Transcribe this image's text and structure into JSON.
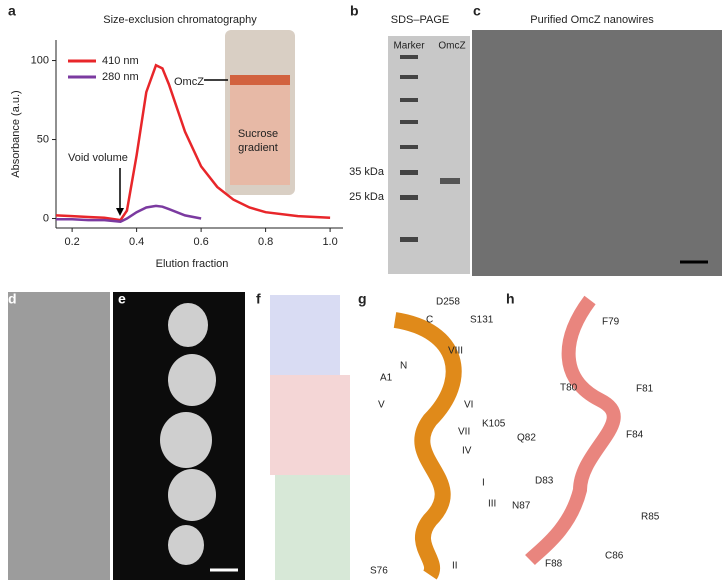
{
  "chart_data": {
    "type": "line",
    "panel": "a",
    "title": "Size-exclusion chromatography",
    "xlabel": "Elution fraction",
    "ylabel": "Absorbance (a.u.)",
    "x": [
      0.15,
      0.2,
      0.25,
      0.3,
      0.35,
      0.37,
      0.4,
      0.43,
      0.46,
      0.48,
      0.5,
      0.55,
      0.6,
      0.65,
      0.7,
      0.75,
      0.8,
      0.9,
      1.0
    ],
    "series": [
      {
        "name": "410 nm",
        "color": "#e8262a",
        "values": [
          2,
          1.5,
          1,
          0.5,
          -1,
          5,
          40,
          80,
          97,
          95,
          85,
          55,
          33,
          20,
          12,
          7,
          4,
          1.5,
          0.5
        ]
      },
      {
        "name": "280 nm",
        "color": "#7b3aa0",
        "values": [
          -0.5,
          -0.5,
          -1,
          -1,
          -2,
          0,
          4,
          7,
          8,
          7.5,
          6,
          2,
          0,
          null,
          null,
          null,
          null,
          null,
          null
        ]
      }
    ],
    "xlim": [
      0.15,
      1.04
    ],
    "ylim": [
      -6,
      113
    ],
    "xticks": [
      0.2,
      0.4,
      0.6,
      0.8,
      {
        "value": 1.0,
        "label": "1.0"
      }
    ],
    "yticks": [
      0,
      50,
      100
    ],
    "annotations": [
      "Void volume",
      "OmcZ",
      "Sucrose",
      "gradient"
    ]
  },
  "panels": {
    "b": {
      "label": "b",
      "title": "SDS–PAGE",
      "lanes": [
        "Marker",
        "OmcZ"
      ],
      "markers": [
        "35 kDa",
        "25 kDa"
      ]
    },
    "c": {
      "label": "c",
      "title": "Purified OmcZ nanowires"
    },
    "d": {
      "label": "d"
    },
    "e": {
      "label": "e"
    },
    "f": {
      "label": "f"
    },
    "g": {
      "label": "g",
      "labels": [
        "D258",
        "C",
        "S131",
        "VIII",
        "N",
        "A1",
        "V",
        "VI",
        "VII",
        "K105",
        "IV",
        "I",
        "III",
        "II",
        "S76"
      ]
    },
    "h": {
      "label": "h",
      "labels": [
        "F79",
        "T80",
        "F81",
        "Q82",
        "F84",
        "D83",
        "N87",
        "R85",
        "F88",
        "C86"
      ]
    }
  }
}
